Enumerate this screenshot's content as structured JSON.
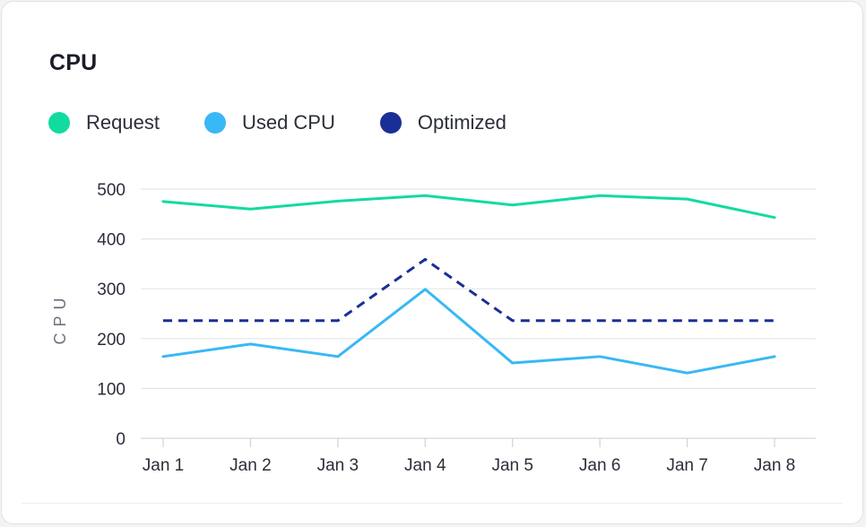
{
  "card": {
    "title": "CPU"
  },
  "colors": {
    "request": "#11dba0",
    "used": "#38b8f5",
    "optimized": "#1a2f96"
  },
  "chart_data": {
    "type": "line",
    "title": "CPU",
    "xlabel": "",
    "ylabel": "CPU",
    "ylim": [
      0,
      500
    ],
    "yticks": [
      "0",
      "100",
      "200",
      "300",
      "400",
      "500"
    ],
    "categories": [
      "Jan 1",
      "Jan 2",
      "Jan 3",
      "Jan 4",
      "Jan 5",
      "Jan 6",
      "Jan 7",
      "Jan 8"
    ],
    "grid": true,
    "legend_position": "top-left",
    "series": [
      {
        "name": "Request",
        "color": "#11dba0",
        "style": "solid",
        "values": [
          475,
          460,
          476,
          487,
          468,
          487,
          480,
          443
        ]
      },
      {
        "name": "Used CPU",
        "color": "#38b8f5",
        "style": "solid",
        "values": [
          164,
          189,
          164,
          299,
          151,
          164,
          131,
          164
        ]
      },
      {
        "name": "Optimized",
        "color": "#1a2f96",
        "style": "dashed",
        "values": [
          236,
          236,
          236,
          359,
          236,
          236,
          236,
          236
        ]
      }
    ]
  }
}
